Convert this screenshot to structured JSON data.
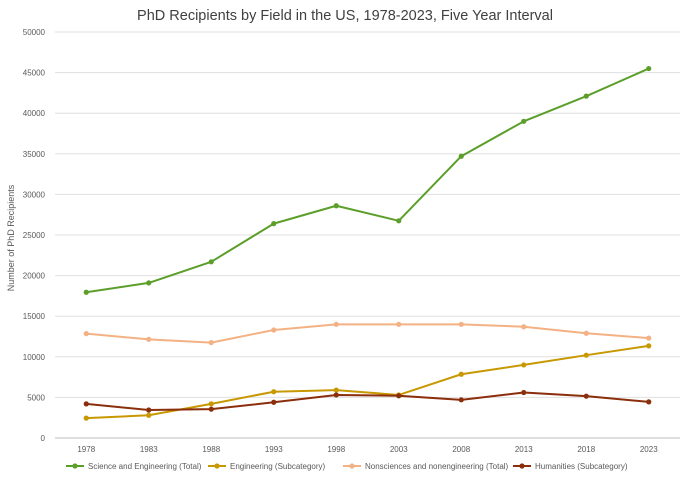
{
  "chart_data": {
    "type": "line",
    "title": "PhD Recipients by Field in the US, 1978-2023, Five Year Interval",
    "xlabel": "",
    "ylabel": "Number of PhD Recipients",
    "categories": [
      "1978",
      "1983",
      "1988",
      "1993",
      "1998",
      "2003",
      "2008",
      "2013",
      "2018",
      "2023"
    ],
    "y_ticks": [
      "0",
      "5000",
      "10000",
      "15000",
      "20000",
      "25000",
      "30000",
      "35000",
      "40000",
      "45000",
      "50000"
    ],
    "ylim": [
      0,
      50000
    ],
    "grid": true,
    "legend_position": "bottom",
    "series": [
      {
        "name": "Science and Engineering (Total)",
        "color": "#5b9f2a",
        "values": [
          17950,
          19100,
          21700,
          26400,
          28600,
          26750,
          34700,
          39000,
          42100,
          45500
        ]
      },
      {
        "name": "Engineering (Subcategory)",
        "color": "#c89800",
        "values": [
          2450,
          2800,
          4200,
          5700,
          5900,
          5300,
          7850,
          9000,
          10200,
          11350
        ]
      },
      {
        "name": "Nonsciences and nonengineering (Total)",
        "color": "#f4b183",
        "values": [
          12850,
          12150,
          11750,
          13300,
          14000,
          14000,
          14000,
          13700,
          12900,
          12300
        ]
      },
      {
        "name": "Humanities (Subcategory)",
        "color": "#8b2e0b",
        "values": [
          4200,
          3450,
          3550,
          4400,
          5300,
          5200,
          4700,
          5600,
          5150,
          4450
        ]
      }
    ]
  }
}
